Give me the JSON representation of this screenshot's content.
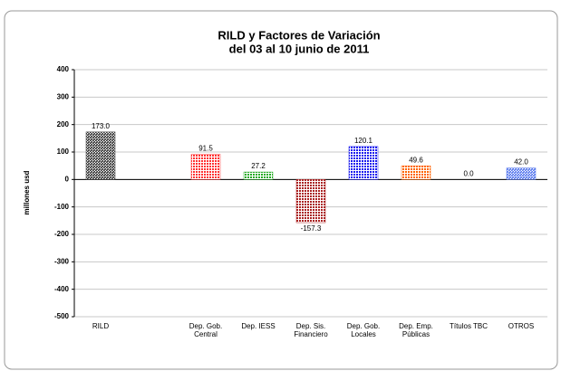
{
  "chart_data": {
    "type": "bar",
    "title": "RILD y Factores de Variación",
    "subtitle": "del 03 al 10 junio de 2011",
    "ylabel": "millones usd",
    "categories": [
      "RILD",
      null,
      "Dep. Gob. Central",
      "Dep. IESS",
      "Dep. Sis. Financiero",
      "Dep. Gob. Locales",
      "Dep. Emp. Públicas",
      "Títulos TBC",
      "OTROS"
    ],
    "values": [
      173.0,
      null,
      91.5,
      27.2,
      -157.3,
      120.1,
      49.6,
      0.0,
      42.0
    ],
    "value_labels": [
      "173.0",
      null,
      "91.5",
      "27.2",
      "-157.3",
      "120.1",
      "49.6",
      "0.0",
      "42.0"
    ],
    "colors": [
      "#333333",
      null,
      "#ff3333",
      "#22aa22",
      "#aa2222",
      "#1a1aee",
      "#ff6600",
      "#999999",
      "#5577ee"
    ],
    "ylim": [
      -500,
      400
    ],
    "yticks": [
      -500,
      -400,
      -300,
      -200,
      -100,
      0,
      100,
      200,
      300,
      400
    ],
    "grid": true
  }
}
